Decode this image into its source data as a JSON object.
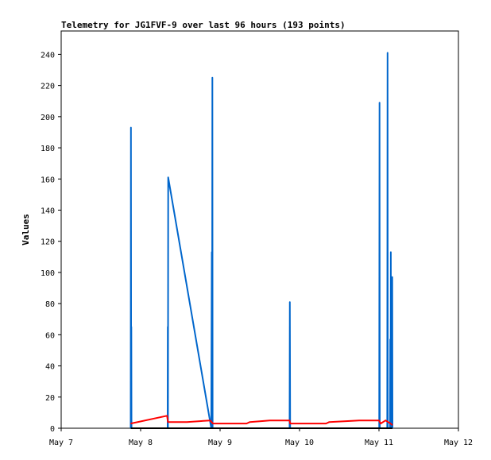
{
  "chart_data": {
    "type": "line",
    "title": "Telemetry for JG1FVF-9 over last 96 hours (193 points)",
    "xlabel": "",
    "ylabel": "Values",
    "x_ticks": [
      "May 7",
      "May 8",
      "May 9",
      "May 10",
      "May 11",
      "May 12"
    ],
    "x_range": [
      "May 7",
      "May 12"
    ],
    "y_ticks": [
      0,
      20,
      40,
      60,
      80,
      100,
      120,
      140,
      160,
      180,
      200,
      220,
      240
    ],
    "ylim": [
      0,
      255
    ],
    "grid": false,
    "legend": "none",
    "series": [
      {
        "color": "#0066cc",
        "points": [
          [
            "May 7 21:00",
            0
          ],
          [
            "May 7 21:05",
            193
          ],
          [
            "May 7 21:08",
            0
          ],
          [
            "May 7 21:12",
            65
          ],
          [
            "May 7 21:15",
            0
          ],
          [
            "May 8 08:10",
            0
          ],
          [
            "May 8 08:13",
            65
          ],
          [
            "May 8 08:16",
            0
          ],
          [
            "May 8 08:20",
            161
          ],
          [
            "May 8 21:20",
            0
          ],
          [
            "May 8 21:30",
            113
          ],
          [
            "May 8 21:35",
            0
          ],
          [
            "May 8 21:40",
            225
          ],
          [
            "May 8 21:45",
            0
          ],
          [
            "May 9 21:00",
            0
          ],
          [
            "May 9 21:05",
            81
          ],
          [
            "May 9 21:10",
            0
          ],
          [
            "May 11 00:05",
            0
          ],
          [
            "May 11 00:10",
            209
          ],
          [
            "May 11 00:15",
            0
          ],
          [
            "May 11 02:30",
            0
          ],
          [
            "May 11 02:35",
            241
          ],
          [
            "May 11 02:40",
            0
          ],
          [
            "May 11 03:20",
            0
          ],
          [
            "May 11 03:25",
            57
          ],
          [
            "May 11 03:30",
            0
          ],
          [
            "May 11 03:35",
            113
          ],
          [
            "May 11 03:40",
            0
          ],
          [
            "May 11 04:00",
            97
          ],
          [
            "May 11 04:05",
            0
          ]
        ]
      },
      {
        "color": "#ff0000",
        "points": [
          [
            "May 7 21:00",
            3
          ],
          [
            "May 8 08:00",
            8
          ],
          [
            "May 8 08:15",
            4
          ],
          [
            "May 8 14:00",
            4
          ],
          [
            "May 8 21:00",
            5
          ],
          [
            "May 8 21:50",
            3
          ],
          [
            "May 9 08:00",
            3
          ],
          [
            "May 9 09:00",
            4
          ],
          [
            "May 9 15:00",
            5
          ],
          [
            "May 9 21:00",
            5
          ],
          [
            "May 9 21:10",
            3
          ],
          [
            "May 10 08:00",
            3
          ],
          [
            "May 10 09:00",
            4
          ],
          [
            "May 10 18:00",
            5
          ],
          [
            "May 11 00:00",
            5
          ],
          [
            "May 11 00:30",
            3
          ],
          [
            "May 11 02:00",
            5
          ],
          [
            "May 11 03:30",
            3
          ],
          [
            "May 11 04:05",
            2
          ]
        ]
      },
      {
        "color": "#000000",
        "points": [
          [
            "May 7 21:00",
            0
          ],
          [
            "May 11 04:05",
            0
          ]
        ]
      }
    ]
  }
}
